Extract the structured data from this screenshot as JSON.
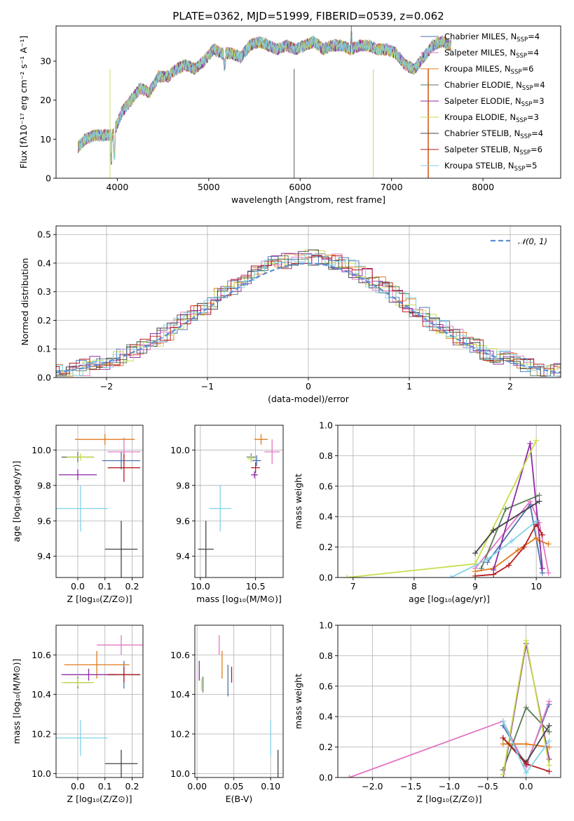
{
  "figure": {
    "title": "PLATE=0362, MJD=51999, FIBERID=0539, z=0.062"
  },
  "colors": {
    "Chabrier MILES": "#4c72b0",
    "Salpeter MILES": "#e377c2",
    "Kroupa MILES": "#e07b20",
    "Chabrier ELODIE": "#5a7a55",
    "Salpeter ELODIE": "#8e2ba6",
    "Kroupa ELODIE": "#c8dd4a",
    "Chabrier STELIB": "#444444",
    "Salpeter STELIB": "#b51c1c",
    "Kroupa STELIB": "#7fd3e8"
  },
  "chart_data": [
    {
      "id": "spectrum",
      "type": "line",
      "title": "PLATE=0362, MJD=51999, FIBERID=0539, z=0.062",
      "xlabel": "wavelength [Angstrom, rest frame]",
      "ylabel": "Flux [fλ10⁻¹⁷ erg cm⁻² s⁻¹ A⁻¹]",
      "xlim": [
        3330,
        8850
      ],
      "ylim": [
        0,
        39
      ],
      "xticks": [
        4000,
        5000,
        6000,
        7000,
        8000
      ],
      "yticks": [
        0,
        10,
        20,
        30
      ],
      "legend_position": "right",
      "grid": false,
      "spectrum_x": [
        3570,
        3650,
        3750,
        3850,
        3950,
        4050,
        4150,
        4250,
        4350,
        4450,
        4550,
        4650,
        4750,
        4850,
        4950,
        5050,
        5150,
        5250,
        5350,
        5450,
        5550,
        5650,
        5750,
        5850,
        5950,
        6050,
        6150,
        6250,
        6350,
        6450,
        6550,
        6650,
        6750,
        6850,
        6950,
        7050,
        7150,
        7250,
        7350,
        7450,
        7550,
        7650
      ],
      "spectrum_y": [
        8,
        10,
        11,
        11,
        11,
        17,
        20,
        23,
        22,
        26,
        26,
        28,
        29,
        28,
        30,
        33,
        32,
        32,
        31,
        34,
        35,
        34,
        33,
        34,
        33,
        34,
        35,
        33,
        34,
        34,
        33,
        34,
        34,
        33,
        33,
        32,
        29,
        28,
        31,
        34,
        35,
        34
      ],
      "series": [
        {
          "name": "Chabrier MILES, N",
          "nssp": "=4",
          "color": "#4c72b0"
        },
        {
          "name": "Salpeter MILES, N",
          "nssp": "=4",
          "color": "#e377c2"
        },
        {
          "name": "Kroupa MILES, N",
          "nssp": "=6",
          "color": "#e07b20"
        },
        {
          "name": "Chabrier ELODIE, N",
          "nssp": "=4",
          "color": "#5a7a55"
        },
        {
          "name": "Salpeter ELODIE, N",
          "nssp": "=3",
          "color": "#8e2ba6"
        },
        {
          "name": "Kroupa ELODIE, N",
          "nssp": "=3",
          "color": "#c8dd4a"
        },
        {
          "name": "Chabrier STELIB, N",
          "nssp": "=4",
          "color": "#444444"
        },
        {
          "name": "Salpeter STELIB, N",
          "nssp": "=6",
          "color": "#b51c1c"
        },
        {
          "name": "Kroupa STELIB, N",
          "nssp": "=5",
          "color": "#7fd3e8"
        }
      ],
      "legend_subscript": "SSP"
    },
    {
      "id": "residuals",
      "type": "line",
      "xlabel": "(data-model)/error",
      "ylabel": "Normed distribution",
      "xlim": [
        -2.5,
        2.5
      ],
      "ylim": [
        0,
        0.53
      ],
      "xticks": [
        -2,
        -1,
        0,
        1,
        2
      ],
      "xtick_labels": [
        "−2",
        "−1",
        "0",
        "1",
        "2"
      ],
      "yticks": [
        0.0,
        0.1,
        0.2,
        0.3,
        0.4,
        0.5
      ],
      "ytick_labels": [
        "0.0",
        "0.1",
        "0.2",
        "0.3",
        "0.4",
        "0.5"
      ],
      "grid": true,
      "legend_position": "top-right",
      "normal_label": "𝒩(0, 1)",
      "normal_color": "#5b8ed6",
      "bin_width": 0.1
    },
    {
      "id": "age-vs-z",
      "type": "scatter",
      "xlabel": "Z [log₁₀(Z/Z⊙)]",
      "ylabel": "age  [log₁₀(age/yr)]",
      "xlim": [
        -0.08,
        0.24
      ],
      "ylim": [
        9.28,
        10.14
      ],
      "xticks": [
        0.0,
        0.1,
        0.2
      ],
      "xtick_labels": [
        "0.0",
        "0.1",
        "0.2"
      ],
      "yticks": [
        9.4,
        9.6,
        9.8,
        10.0
      ],
      "ytick_labels": [
        "9.4",
        "9.6",
        "9.8",
        "10.0"
      ],
      "grid": true,
      "points": [
        {
          "model": "Chabrier MILES",
          "x": 0.16,
          "y": 9.94,
          "xerr": 0.07,
          "yerr": 0.05
        },
        {
          "model": "Salpeter MILES",
          "x": 0.17,
          "y": 9.99,
          "xerr": 0.06,
          "yerr": 0.08
        },
        {
          "model": "Kroupa MILES",
          "x": 0.1,
          "y": 10.06,
          "xerr": 0.11,
          "yerr": 0.03
        },
        {
          "model": "Chabrier ELODIE",
          "x": 0.0,
          "y": 9.96,
          "xerr": 0.06,
          "yerr": 0.03
        },
        {
          "model": "Salpeter ELODIE",
          "x": 0.0,
          "y": 9.86,
          "xerr": 0.07,
          "yerr": 0.03
        },
        {
          "model": "Kroupa ELODIE",
          "x": 0.01,
          "y": 9.96,
          "xerr": 0.05,
          "yerr": 0.02
        },
        {
          "model": "Chabrier STELIB",
          "x": 0.16,
          "y": 9.44,
          "xerr": 0.06,
          "yerr": 0.16
        },
        {
          "model": "Salpeter STELIB",
          "x": 0.17,
          "y": 9.9,
          "xerr": 0.06,
          "yerr": 0.08
        },
        {
          "model": "Kroupa STELIB",
          "x": 0.01,
          "y": 9.67,
          "xerr": 0.1,
          "yerr": 0.13
        }
      ]
    },
    {
      "id": "age-vs-mass",
      "type": "scatter",
      "xlabel": "mass [log₁₀(M/M⊙)]",
      "xlim": [
        9.95,
        10.75
      ],
      "ylim": [
        9.28,
        10.14
      ],
      "xticks": [
        10.0,
        10.5
      ],
      "xtick_labels": [
        "10.0",
        "10.5"
      ],
      "yticks": [
        9.4,
        9.6,
        9.8,
        10.0
      ],
      "ytick_labels": [
        "9.4",
        "9.6",
        "9.8",
        "10.0"
      ],
      "grid": true,
      "points": [
        {
          "model": "Chabrier MILES",
          "x": 10.51,
          "y": 9.94,
          "xerr": 0.04,
          "yerr": 0.03
        },
        {
          "model": "Salpeter MILES",
          "x": 10.65,
          "y": 9.99,
          "xerr": 0.07,
          "yerr": 0.07
        },
        {
          "model": "Kroupa MILES",
          "x": 10.55,
          "y": 10.06,
          "xerr": 0.06,
          "yerr": 0.03
        },
        {
          "model": "Chabrier ELODIE",
          "x": 10.46,
          "y": 9.96,
          "xerr": 0.04,
          "yerr": 0.02
        },
        {
          "model": "Salpeter ELODIE",
          "x": 10.49,
          "y": 9.86,
          "xerr": 0.03,
          "yerr": 0.02
        },
        {
          "model": "Kroupa ELODIE",
          "x": 10.46,
          "y": 9.95,
          "xerr": 0.03,
          "yerr": 0.02
        },
        {
          "model": "Chabrier STELIB",
          "x": 10.05,
          "y": 9.44,
          "xerr": 0.07,
          "yerr": 0.16
        },
        {
          "model": "Salpeter STELIB",
          "x": 10.5,
          "y": 9.9,
          "xerr": 0.04,
          "yerr": 0.03
        },
        {
          "model": "Kroupa STELIB",
          "x": 10.18,
          "y": 9.67,
          "xerr": 0.1,
          "yerr": 0.13
        }
      ]
    },
    {
      "id": "weight-vs-age",
      "type": "line",
      "xlabel": "age  [log₁₀(age/yr)]",
      "ylabel": "mass weight",
      "xlim": [
        6.75,
        10.4
      ],
      "ylim": [
        0.0,
        1.0
      ],
      "xticks": [
        7,
        8,
        9,
        10
      ],
      "xtick_labels": [
        "7",
        "8",
        "9",
        "10"
      ],
      "yticks": [
        0.0,
        0.2,
        0.4,
        0.6,
        0.8,
        1.0
      ],
      "ytick_labels": [
        "0.0",
        "0.2",
        "0.4",
        "0.6",
        "0.8",
        "1.0"
      ],
      "grid": true,
      "series": [
        {
          "model": "Chabrier MILES",
          "x": [
            9.2,
            9.9,
            10.1
          ],
          "y": [
            0.1,
            0.48,
            0.03
          ]
        },
        {
          "model": "Salpeter MILES",
          "x": [
            9.0,
            9.9,
            10.05,
            10.2
          ],
          "y": [
            0.06,
            0.5,
            0.36,
            0.03
          ]
        },
        {
          "model": "Kroupa MILES",
          "x": [
            9.0,
            9.3,
            9.7,
            10.0,
            10.05,
            10.2
          ],
          "y": [
            0.04,
            0.06,
            0.18,
            0.26,
            0.24,
            0.22
          ]
        },
        {
          "model": "Chabrier ELODIE",
          "x": [
            9.1,
            9.5,
            10.05
          ],
          "y": [
            0.06,
            0.45,
            0.54
          ]
        },
        {
          "model": "Salpeter ELODIE",
          "x": [
            9.3,
            9.9,
            10.1
          ],
          "y": [
            0.05,
            0.88,
            0.06
          ]
        },
        {
          "model": "Kroupa ELODIE",
          "x": [
            6.9,
            9.0,
            10.0
          ],
          "y": [
            0.0,
            0.09,
            0.9
          ]
        },
        {
          "model": "Chabrier STELIB",
          "x": [
            9.0,
            9.3,
            10.05
          ],
          "y": [
            0.16,
            0.31,
            0.5
          ]
        },
        {
          "model": "Salpeter STELIB",
          "x": [
            9.0,
            9.3,
            9.55,
            9.8,
            10.0,
            10.1
          ],
          "y": [
            0.01,
            0.02,
            0.08,
            0.2,
            0.35,
            0.28
          ]
        },
        {
          "model": "Kroupa STELIB",
          "x": [
            8.6,
            9.2,
            9.6,
            10.0
          ],
          "y": [
            0.0,
            0.12,
            0.24,
            0.37
          ]
        }
      ]
    },
    {
      "id": "mass-vs-z",
      "type": "scatter",
      "xlabel": "Z [log₁₀(Z/Z⊙)]",
      "ylabel": "mass [log₁₀(M/M⊙)]",
      "xlim": [
        -0.08,
        0.24
      ],
      "ylim": [
        9.98,
        10.75
      ],
      "xticks": [
        0.0,
        0.1,
        0.2
      ],
      "xtick_labels": [
        "0.0",
        "0.1",
        "0.2"
      ],
      "yticks": [
        10.0,
        10.2,
        10.4,
        10.6
      ],
      "ytick_labels": [
        "10.0",
        "10.2",
        "10.4",
        "10.6"
      ],
      "grid": true,
      "points": [
        {
          "model": "Chabrier MILES",
          "x": 0.17,
          "y": 10.5,
          "xerr": 0.06,
          "yerr": 0.07
        },
        {
          "model": "Salpeter MILES",
          "x": 0.16,
          "y": 10.65,
          "xerr": 0.09,
          "yerr": 0.05
        },
        {
          "model": "Kroupa MILES",
          "x": 0.07,
          "y": 10.55,
          "xerr": 0.12,
          "yerr": 0.07
        },
        {
          "model": "Chabrier ELODIE",
          "x": 0.0,
          "y": 10.46,
          "xerr": 0.05,
          "yerr": 0.03
        },
        {
          "model": "Salpeter ELODIE",
          "x": 0.04,
          "y": 10.5,
          "xerr": 0.1,
          "yerr": 0.03
        },
        {
          "model": "Kroupa ELODIE",
          "x": 0.0,
          "y": 10.46,
          "xerr": 0.06,
          "yerr": 0.02
        },
        {
          "model": "Chabrier STELIB",
          "x": 0.16,
          "y": 10.05,
          "xerr": 0.06,
          "yerr": 0.07
        },
        {
          "model": "Salpeter STELIB",
          "x": 0.17,
          "y": 10.5,
          "xerr": 0.06,
          "yerr": 0.04
        },
        {
          "model": "Kroupa STELIB",
          "x": 0.01,
          "y": 10.18,
          "xerr": 0.1,
          "yerr": 0.09
        }
      ]
    },
    {
      "id": "mass-vs-ebv",
      "type": "scatter",
      "xlabel": "E(B-V)",
      "xlim": [
        -0.003,
        0.117
      ],
      "ylim": [
        9.98,
        10.75
      ],
      "xticks": [
        0.0,
        0.05,
        0.1
      ],
      "xtick_labels": [
        "0.00",
        "0.05",
        "0.10"
      ],
      "yticks": [
        10.0,
        10.2,
        10.4,
        10.6
      ],
      "ytick_labels": [
        "10.0",
        "10.2",
        "10.4",
        "10.6"
      ],
      "grid": true,
      "points": [
        {
          "model": "Chabrier MILES",
          "x": 0.042,
          "y": 10.47,
          "xerr": 0.0,
          "yerr": 0.08
        },
        {
          "model": "Salpeter MILES",
          "x": 0.03,
          "y": 10.65,
          "xerr": 0.0,
          "yerr": 0.05
        },
        {
          "model": "Kroupa MILES",
          "x": 0.034,
          "y": 10.55,
          "xerr": 0.0,
          "yerr": 0.07
        },
        {
          "model": "Chabrier ELODIE",
          "x": 0.008,
          "y": 10.45,
          "xerr": 0.0,
          "yerr": 0.04
        },
        {
          "model": "Salpeter ELODIE",
          "x": 0.003,
          "y": 10.52,
          "xerr": 0.0,
          "yerr": 0.05
        },
        {
          "model": "Kroupa ELODIE",
          "x": 0.006,
          "y": 10.45,
          "xerr": 0.0,
          "yerr": 0.03
        },
        {
          "model": "Chabrier STELIB",
          "x": 0.11,
          "y": 10.05,
          "xerr": 0.0,
          "yerr": 0.07
        },
        {
          "model": "Salpeter STELIB",
          "x": 0.047,
          "y": 10.5,
          "xerr": 0.0,
          "yerr": 0.04
        },
        {
          "model": "Kroupa STELIB",
          "x": 0.1,
          "y": 10.18,
          "xerr": 0.0,
          "yerr": 0.09
        }
      ]
    },
    {
      "id": "weight-vs-z",
      "type": "line",
      "xlabel": "Z [log₁₀(Z/Z⊙)]",
      "ylabel": "mass weight",
      "xlim": [
        -2.45,
        0.45
      ],
      "ylim": [
        0.0,
        1.0
      ],
      "xticks": [
        -2.0,
        -1.5,
        -1.0,
        -0.5,
        0.0
      ],
      "xtick_labels": [
        "−2.0",
        "−1.5",
        "−1.0",
        "−0.5",
        "0.0"
      ],
      "yticks": [
        0.0,
        0.2,
        0.4,
        0.6,
        0.8,
        1.0
      ],
      "ytick_labels": [
        "0.0",
        "0.2",
        "0.4",
        "0.6",
        "0.8",
        "1.0"
      ],
      "grid": true,
      "series": [
        {
          "model": "Chabrier MILES",
          "x": [
            -0.3,
            0.0,
            0.3
          ],
          "y": [
            0.34,
            0.08,
            0.48
          ]
        },
        {
          "model": "Salpeter MILES",
          "x": [
            -2.3,
            -0.3,
            0.0,
            0.3
          ],
          "y": [
            0.0,
            0.37,
            0.07,
            0.5
          ]
        },
        {
          "model": "Kroupa MILES",
          "x": [
            -0.3,
            0.0,
            0.3
          ],
          "y": [
            0.22,
            0.22,
            0.2
          ]
        },
        {
          "model": "Chabrier ELODIE",
          "x": [
            -0.3,
            0.0,
            0.3
          ],
          "y": [
            0.05,
            0.46,
            0.3
          ]
        },
        {
          "model": "Salpeter ELODIE",
          "x": [
            -0.3,
            0.0,
            0.3
          ],
          "y": [
            0.0,
            0.88,
            0.12
          ]
        },
        {
          "model": "Kroupa ELODIE",
          "x": [
            -0.3,
            0.0,
            0.3
          ],
          "y": [
            0.02,
            0.9,
            0.08
          ]
        },
        {
          "model": "Chabrier STELIB",
          "x": [
            -0.3,
            0.0,
            0.3
          ],
          "y": [
            0.26,
            0.1,
            0.34
          ]
        },
        {
          "model": "Salpeter STELIB",
          "x": [
            -0.3,
            0.0,
            0.3
          ],
          "y": [
            0.26,
            0.09,
            0.04
          ]
        },
        {
          "model": "Kroupa STELIB",
          "x": [
            -0.3,
            0.0,
            0.3
          ],
          "y": [
            0.37,
            0.03,
            0.24
          ]
        }
      ]
    }
  ]
}
